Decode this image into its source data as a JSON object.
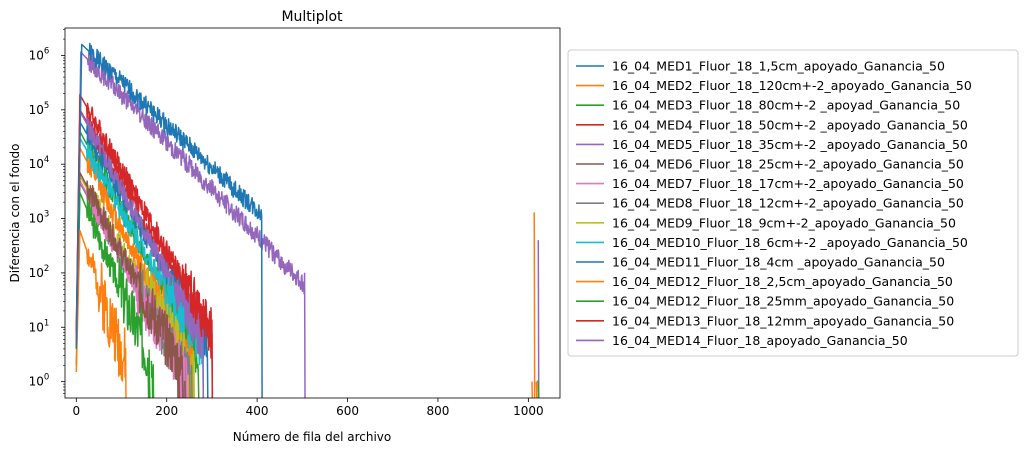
{
  "chart_data": {
    "type": "line",
    "title": "Multiplot",
    "xlabel": "Número de fila del archivo",
    "ylabel": "Diferencia con el fondo",
    "yscale": "log",
    "xlim": [
      -25,
      1070
    ],
    "ylim": [
      0.5,
      3200000
    ],
    "grid": false,
    "legend_position": "outside-right",
    "x_ticks": [
      {
        "value": 0,
        "label": "0"
      },
      {
        "value": 200,
        "label": "200"
      },
      {
        "value": 400,
        "label": "400"
      },
      {
        "value": 600,
        "label": "600"
      },
      {
        "value": 800,
        "label": "800"
      },
      {
        "value": 1000,
        "label": "1000"
      }
    ],
    "y_ticks": [
      {
        "value": 1,
        "base": "10",
        "exp": "0"
      },
      {
        "value": 10,
        "base": "10",
        "exp": "1"
      },
      {
        "value": 100,
        "base": "10",
        "exp": "2"
      },
      {
        "value": 1000,
        "base": "10",
        "exp": "3"
      },
      {
        "value": 10000,
        "base": "10",
        "exp": "4"
      },
      {
        "value": 100000,
        "base": "10",
        "exp": "5"
      },
      {
        "value": 1000000,
        "base": "10",
        "exp": "6"
      }
    ],
    "series": [
      {
        "name": "16_04_MED1_Fluor_18_1,5cm_apoyado_Ganancia_50",
        "color": "#1f77b4",
        "peak_x": 12,
        "peak": 1600000,
        "decay": 55,
        "cutoff": 410,
        "rise_from": 4,
        "noise": 0.35,
        "seed": 1
      },
      {
        "name": "16_04_MED2_Fluor_18_120cm+-2_apoyado_Ganancia_50",
        "color": "#ff7f0e",
        "peak_x": 8,
        "peak": 600,
        "decay": 18,
        "cutoff": 110,
        "rise_from": 1.5,
        "noise": 0.55,
        "seed": 2,
        "spike": {
          "x": [
            1008,
            1013,
            1018
          ],
          "y": [
            1,
            1300,
            1
          ]
        }
      },
      {
        "name": "16_04_MED3_Fluor_18_80cm+-2 _apoyad_Ganancia_50",
        "color": "#2ca02c",
        "peak_x": 8,
        "peak": 3000,
        "decay": 22,
        "cutoff": 170,
        "rise_from": 2,
        "noise": 0.5,
        "seed": 3,
        "spike": {
          "x": [
            1020,
            1021,
            1022
          ],
          "y": [
            1,
            1.02,
            1
          ]
        }
      },
      {
        "name": "16_04_MED4_Fluor_18_50cm+-2 _apoyado_Ganancia_50",
        "color": "#d62728",
        "peak_x": 8,
        "peak": 190000,
        "decay": 29,
        "cutoff": 300,
        "rise_from": 8,
        "noise": 0.4,
        "seed": 4
      },
      {
        "name": "16_04_MED5_Fluor_18_35cm+-2 _apoyado_Ganancia_50",
        "color": "#9467bd",
        "peak_x": 8,
        "peak": 95000,
        "decay": 28,
        "cutoff": 280,
        "rise_from": 6,
        "noise": 0.4,
        "seed": 5
      },
      {
        "name": "16_04_MED6_Fluor_18_25cm+-2_apoyado_Ganancia_50",
        "color": "#8c564b",
        "peak_x": 8,
        "peak": 7000,
        "decay": 27,
        "cutoff": 240,
        "rise_from": 4,
        "noise": 0.45,
        "seed": 6
      },
      {
        "name": "16_04_MED7_Fluor_18_17cm+-2_apoyado_Ganancia_50",
        "color": "#e377c2",
        "peak_x": 8,
        "peak": 5000,
        "decay": 28,
        "cutoff": 250,
        "rise_from": 4,
        "noise": 0.45,
        "seed": 7
      },
      {
        "name": "16_04_MED8_Fluor_18_12cm+-2_apoyado_Ganancia_50",
        "color": "#7f7f7f",
        "peak_x": 8,
        "peak": 4500,
        "decay": 29,
        "cutoff": 255,
        "rise_from": 4,
        "noise": 0.45,
        "seed": 8
      },
      {
        "name": "16_04_MED9_Fluor_18_9cm+-2_apoyado_Ganancia_50",
        "color": "#bcbd22",
        "peak_x": 8,
        "peak": 6000,
        "decay": 30,
        "cutoff": 260,
        "rise_from": 4,
        "noise": 0.45,
        "seed": 9
      },
      {
        "name": "16_04_MED10_Fluor_18_6cm+-2 _apoyado_Ganancia_50",
        "color": "#17becf",
        "peak_x": 8,
        "peak": 30000,
        "decay": 30,
        "cutoff": 280,
        "rise_from": 5,
        "noise": 0.4,
        "seed": 10
      },
      {
        "name": "16_04_MED11_Fluor_18_4cm _apoyado_Ganancia_50",
        "color": "#1f77b4",
        "peak_x": 8,
        "peak": 60000,
        "decay": 30,
        "cutoff": 290,
        "rise_from": 5,
        "noise": 0.4,
        "seed": 11
      },
      {
        "name": "16_04_MED12_Fluor_18_2,5cm_apoyado_Ganancia_50",
        "color": "#ff7f0e",
        "peak_x": 8,
        "peak": 20000,
        "decay": 27,
        "cutoff": 260,
        "rise_from": 5,
        "noise": 0.45,
        "seed": 12
      },
      {
        "name": "16_04_MED12_Fluor_18_25mm_apoyado_Ganancia_50",
        "color": "#2ca02c",
        "peak_x": 8,
        "peak": 40000,
        "decay": 28,
        "cutoff": 270,
        "rise_from": 5,
        "noise": 0.45,
        "seed": 13
      },
      {
        "name": "16_04_MED13_Fluor_18_12mm_apoyado_Ganancia_50",
        "color": "#d62728",
        "peak_x": 8,
        "peak": 100000,
        "decay": 30,
        "cutoff": 300,
        "rise_from": 7,
        "noise": 0.4,
        "seed": 14
      },
      {
        "name": "16_04_MED14_Fluor_18_apoyado_Ganancia_50",
        "color": "#9467bd",
        "peak_x": 10,
        "peak": 1150000,
        "decay": 50,
        "cutoff": 505,
        "rise_from": 4,
        "noise": 0.35,
        "seed": 15,
        "spike": {
          "x": [
            1018,
            1022,
            1024
          ],
          "y": [
            1,
            400,
            150
          ]
        }
      }
    ]
  }
}
